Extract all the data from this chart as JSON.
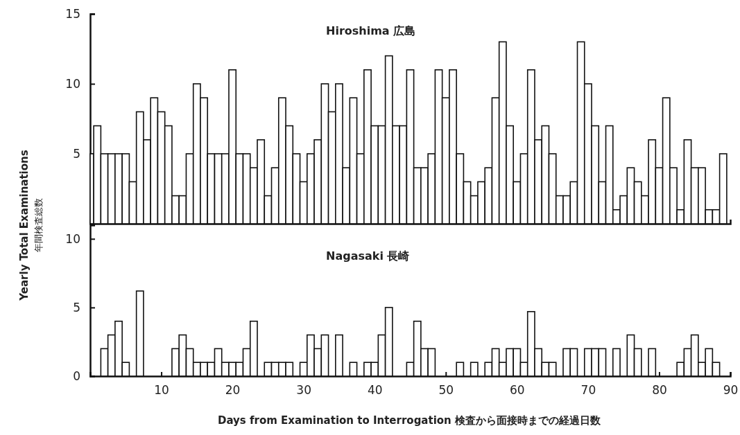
{
  "chart_data": [
    {
      "type": "histogram",
      "title": "Hiroshima 広島",
      "ylabel": "Yearly Total Examinations\n年間検査総数",
      "color": "#ffffff",
      "bins": [
        0,
        0.5,
        1.5,
        2.5,
        3.5,
        4.5,
        5.5,
        6.5,
        7.5,
        8.5,
        9.5,
        10.5,
        11.5,
        12.5,
        13.5,
        14.5,
        15.5,
        16.5,
        17.5,
        18.5,
        19.5,
        20.5,
        21.5,
        22.5,
        23.5,
        24.5,
        25.5,
        26.5,
        27.5,
        28.5,
        29.5,
        30.5,
        31.5,
        32.5,
        33.5,
        34.5,
        35.5,
        36.5,
        37.5,
        38.5,
        39.5,
        40.5,
        41.5,
        42.5,
        43.5,
        44.5,
        45.5,
        46.5,
        47.5,
        48.5,
        49.5,
        50.5,
        51.5,
        52.5,
        53.5,
        54.5,
        55.5,
        56.5,
        57.5,
        58.5,
        59.5,
        60.5,
        61.5,
        62.5,
        63.5,
        64.5,
        65.5,
        66.5,
        67.5,
        68.5,
        69.5,
        70.5,
        71.5,
        72.5,
        73.5,
        74.5,
        75.5,
        76.5,
        77.5,
        78.5,
        79.5,
        80.5,
        81.5,
        82.5,
        83.5,
        84.5,
        85.5,
        86.5,
        87.5,
        88.5,
        89.5
      ],
      "values": [
        5,
        7,
        5,
        5,
        5,
        5,
        3,
        8,
        6,
        9,
        8,
        7,
        2,
        2,
        5,
        10,
        9,
        5,
        5,
        5,
        11,
        5,
        5,
        4,
        6,
        2,
        4,
        9,
        7,
        5,
        3,
        5,
        6,
        10,
        8,
        10,
        4,
        9,
        5,
        11,
        7,
        7,
        12,
        7,
        7,
        11,
        4,
        4,
        5,
        11,
        9,
        11,
        5,
        3,
        2,
        3,
        4,
        9,
        13,
        7,
        3,
        5,
        11,
        6,
        7,
        5,
        2,
        2,
        3,
        13,
        10,
        7,
        3,
        7,
        1,
        2,
        4,
        3,
        2,
        6,
        4,
        9,
        4,
        1,
        6,
        4,
        4,
        1,
        1,
        5
      ],
      "xlim": [
        0,
        90
      ],
      "ylim": [
        0,
        15
      ],
      "yticks": [
        5,
        10,
        15
      ],
      "tick_labels": "y"
    },
    {
      "type": "histogram",
      "title": "Nagasaki 長崎",
      "xlabel": "Days from Examination to Interrogation 検査から面接時までの経過日数",
      "color": "#ffffff",
      "bins": [
        1.5,
        2.5,
        3.5,
        4.5,
        5.5,
        6.5,
        7.5,
        11.5,
        12.5,
        13.5,
        14.5,
        15.5,
        16.5,
        17.5,
        18.5,
        19.5,
        20.5,
        21.5,
        22.5,
        23.5,
        24.5,
        25.5,
        26.5,
        27.5,
        28.5,
        29.5,
        30.5,
        31.5,
        32.5,
        33.5,
        34.5,
        35.5,
        36.5,
        37.5,
        38.5,
        39.5,
        40.5,
        41.5,
        42.5,
        44.5,
        45.5,
        46.5,
        47.5,
        48.5,
        51.5,
        52.5,
        53.5,
        54.5,
        55.5,
        56.5,
        57.5,
        58.5,
        59.5,
        60.5,
        61.5,
        62.5,
        63.5,
        64.5,
        65.5,
        66.5,
        67.5,
        68.5,
        69.5,
        70.5,
        71.5,
        72.5,
        73.5,
        74.5,
        75.5,
        76.5,
        77.5,
        78.5,
        79.5,
        82.5,
        83.5,
        84.5,
        85.5,
        86.5,
        87.5,
        88.5
      ],
      "values": [
        2,
        3,
        4,
        1,
        0,
        6.2,
        0,
        2,
        3,
        2,
        1,
        1,
        1,
        2,
        1,
        1,
        1,
        2,
        4,
        0,
        1,
        1,
        1,
        1,
        0,
        1,
        3,
        2,
        3,
        0,
        3,
        0,
        1,
        0,
        1,
        1,
        3,
        5,
        0,
        1,
        4,
        2,
        2,
        0,
        1,
        0,
        1,
        0,
        1,
        2,
        1,
        2,
        2,
        1,
        4.7,
        2,
        1,
        1,
        0,
        2,
        2,
        0,
        2,
        2,
        2,
        0,
        2,
        0,
        3,
        2,
        0,
        2,
        0,
        1,
        2,
        3,
        1,
        2,
        1
      ],
      "xlim": [
        0,
        90
      ],
      "ylim": [
        0,
        11
      ],
      "xticks": [
        10,
        20,
        30,
        40,
        50,
        60,
        70,
        80,
        90
      ],
      "yticks": [
        0,
        5,
        10
      ]
    }
  ]
}
